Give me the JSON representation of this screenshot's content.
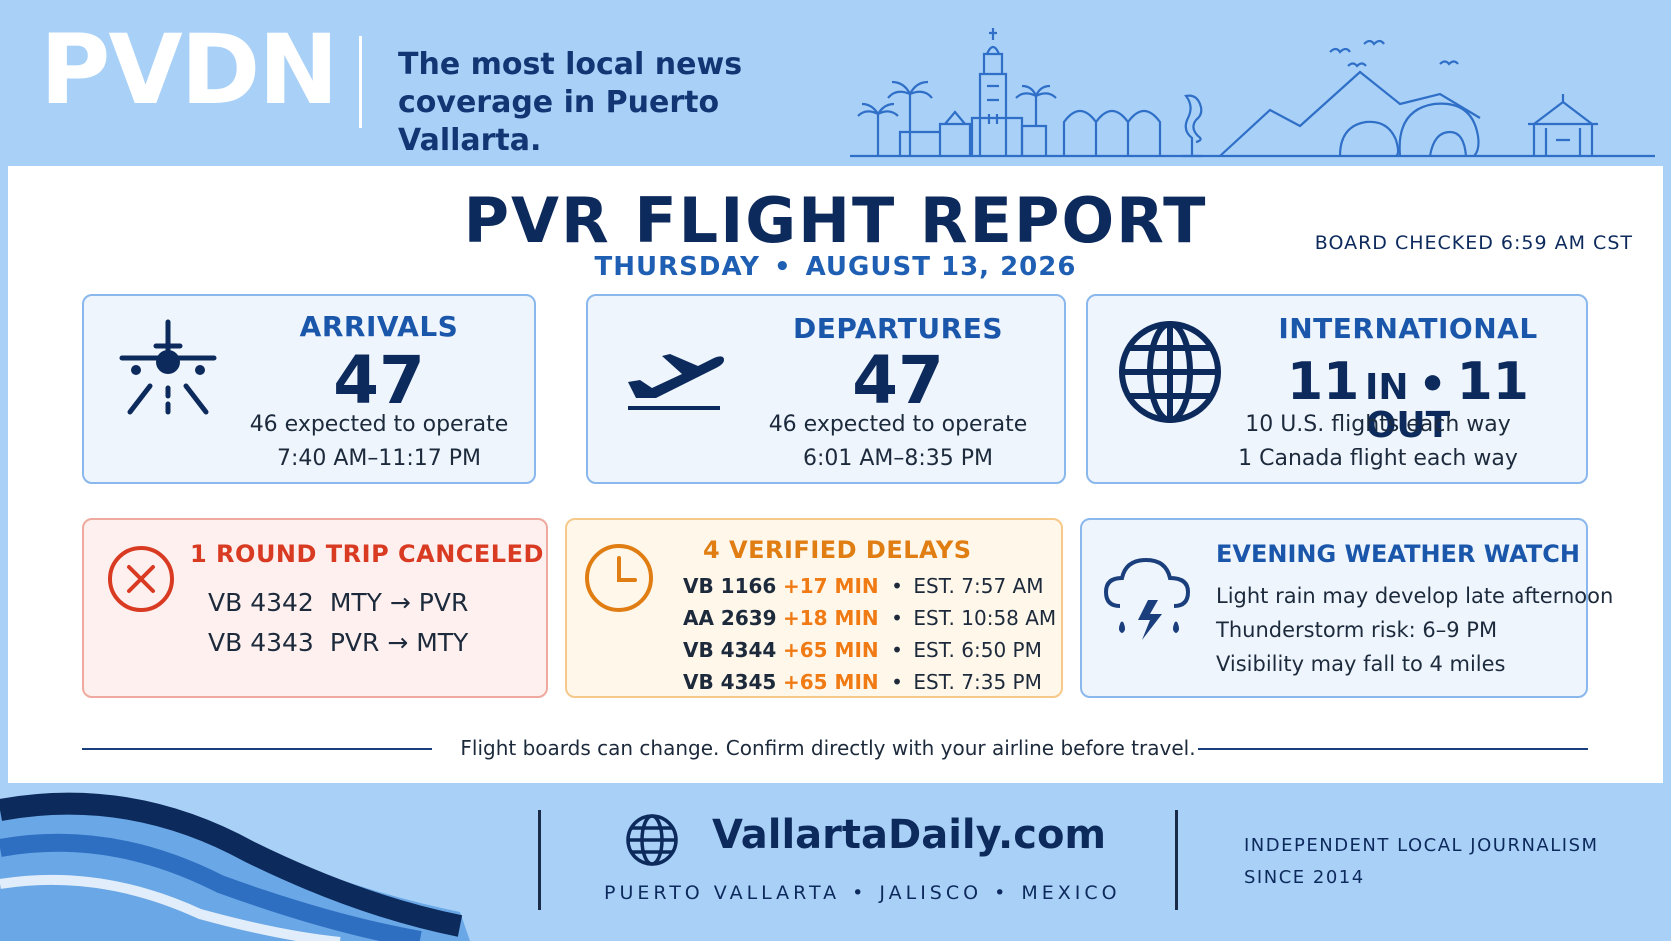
{
  "header": {
    "logo": "PVDN",
    "tagline_line1": "The most local news",
    "tagline_line2": "coverage in Puerto Vallarta."
  },
  "report": {
    "title": "PVR FLIGHT REPORT",
    "day": "THURSDAY",
    "date": "AUGUST 13, 2026",
    "separator": "•",
    "checked": "BOARD CHECKED 6:59 AM CST"
  },
  "arrivals": {
    "label": "ARRIVALS",
    "count": "47",
    "expected": "46 expected to operate",
    "window": "7:40 AM–11:17 PM"
  },
  "departures": {
    "label": "DEPARTURES",
    "count": "47",
    "expected": "46 expected to operate",
    "window": "6:01 AM–8:35 PM"
  },
  "international": {
    "label": "INTERNATIONAL",
    "in_count": "11",
    "in_label": "IN",
    "sep": "•",
    "out_count": "11",
    "out_label": "OUT",
    "us": "10 U.S. flights each way",
    "canada": "1 Canada flight each way"
  },
  "canceled": {
    "title": "1 ROUND TRIP CANCELED",
    "rows": [
      {
        "flight": "VB 4342",
        "route": "MTY → PVR"
      },
      {
        "flight": "VB 4343",
        "route": "PVR → MTY"
      }
    ]
  },
  "delays": {
    "title": "4 VERIFIED DELAYS",
    "bullet": "•",
    "rows": [
      {
        "flight": "VB 1166",
        "delay": "+17 MIN",
        "est": "EST. 7:57 AM"
      },
      {
        "flight": "AA 2639",
        "delay": "+18 MIN",
        "est": "EST. 10:58 AM"
      },
      {
        "flight": "VB 4344",
        "delay": "+65 MIN",
        "est": "EST. 6:50 PM"
      },
      {
        "flight": "VB 4345",
        "delay": "+65 MIN",
        "est": "EST. 7:35 PM"
      }
    ]
  },
  "weather": {
    "title": "EVENING WEATHER WATCH",
    "lines": [
      "Light rain may develop late afternoon",
      "Thunderstorm risk: 6–9 PM",
      "Visibility may fall to 4 miles"
    ]
  },
  "disclaimer": "Flight boards can change. Confirm directly with your airline before travel.",
  "footer": {
    "site": "VallartaDaily.com",
    "place1": "PUERTO VALLARTA",
    "place2": "JALISCO",
    "place3": "MEXICO",
    "sep": "•",
    "indep_line1": "INDEPENDENT LOCAL JOURNALISM",
    "indep_line2": "SINCE 2014"
  },
  "colors": {
    "background": "#a9d1f7",
    "navy": "#0d2a5c",
    "accent_blue": "#1a56aa",
    "cancel_red": "#d93a22",
    "delay_orange": "#f07a14"
  },
  "icons": [
    "plane-landing-icon",
    "plane-takeoff-icon",
    "globe-icon",
    "cancel-x-icon",
    "clock-icon",
    "storm-cloud-icon",
    "skyline-illustration",
    "waves-decoration"
  ]
}
